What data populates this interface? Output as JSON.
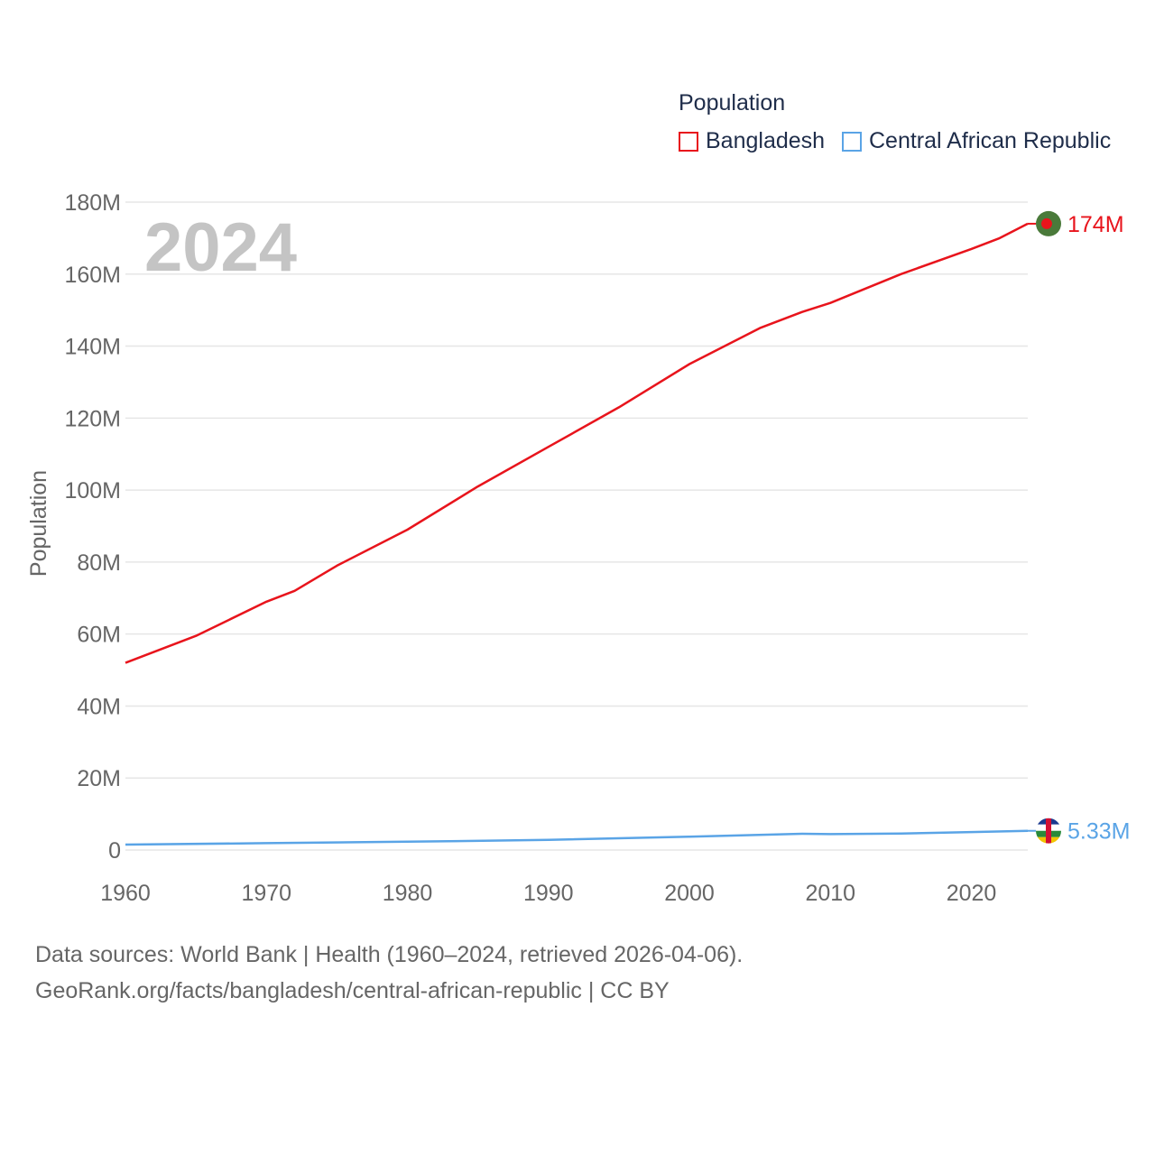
{
  "legend": {
    "title": "Population",
    "items": [
      {
        "label": "Bangladesh",
        "color": "#e8141c"
      },
      {
        "label": "Central African Republic",
        "color": "#5aa4e6"
      }
    ]
  },
  "footer": {
    "line1": "Data sources: World Bank | Health (1960–2024, retrieved 2026-04-06).",
    "line2": "GeoRank.org/facts/bangladesh/central-african-republic | CC BY"
  },
  "chart_data": {
    "type": "line",
    "title": "",
    "year_label": "2024",
    "xlabel": "",
    "ylabel": "Population",
    "xlim": [
      1960,
      2024
    ],
    "ylim": [
      0,
      180
    ],
    "x_ticks": [
      1960,
      1970,
      1980,
      1990,
      2000,
      2010,
      2020
    ],
    "y_ticks": [
      {
        "value": 0,
        "label": "0"
      },
      {
        "value": 20,
        "label": "20M"
      },
      {
        "value": 40,
        "label": "40M"
      },
      {
        "value": 60,
        "label": "60M"
      },
      {
        "value": 80,
        "label": "80M"
      },
      {
        "value": 100,
        "label": "100M"
      },
      {
        "value": 120,
        "label": "120M"
      },
      {
        "value": 140,
        "label": "140M"
      },
      {
        "value": 160,
        "label": "160M"
      },
      {
        "value": 180,
        "label": "180M"
      }
    ],
    "series": [
      {
        "name": "Bangladesh",
        "color": "#e8141c",
        "end_label": "174M",
        "flag": "bangladesh-flag",
        "x": [
          1960,
          1965,
          1970,
          1972,
          1975,
          1980,
          1985,
          1990,
          1995,
          2000,
          2005,
          2008,
          2010,
          2015,
          2020,
          2022,
          2024
        ],
        "values": [
          52,
          59.5,
          69,
          72,
          79,
          89,
          101,
          112,
          123,
          135,
          145,
          149.5,
          152,
          160,
          167,
          170,
          174
        ]
      },
      {
        "name": "Central African Republic",
        "color": "#5aa4e6",
        "end_label": "5.33M",
        "flag": "central-african-republic-flag",
        "x": [
          1960,
          1970,
          1980,
          1990,
          2000,
          2008,
          2010,
          2015,
          2020,
          2024
        ],
        "values": [
          1.5,
          1.9,
          2.3,
          2.8,
          3.7,
          4.5,
          4.4,
          4.6,
          5.0,
          5.33
        ]
      }
    ]
  }
}
